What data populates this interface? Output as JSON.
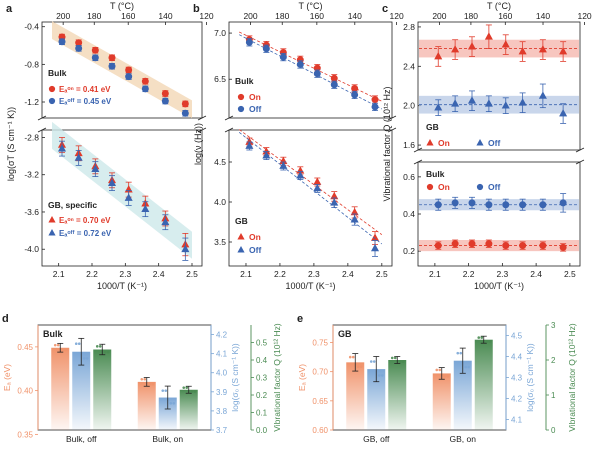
{
  "colors": {
    "on": "#e03b2b",
    "off": "#3a64b0",
    "green": "#4a8b52",
    "orange": "#f0926a",
    "blue": "#7aa6d6",
    "band_on": "#f4b3aa",
    "band_off": "#b7c8e4",
    "band_bulk": "#f3d7b5",
    "band_gb": "#cde9ea"
  },
  "chart_data": [
    {
      "panel": "a",
      "type": "scatter",
      "xlabel": "1000/T (K⁻¹)",
      "xlim": [
        2.05,
        2.53
      ],
      "xticks": [
        "2.1",
        "2.2",
        "2.3",
        "2.4",
        "2.5"
      ],
      "top_axis_label": "T (°C)",
      "top_ticks": [
        "200",
        "180",
        "160",
        "140",
        "120"
      ],
      "ylabel": "log(σT (S cm⁻¹ K))",
      "yticks_upper": [
        "-0.4",
        "-0.8",
        "-1.2"
      ],
      "yticks_lower": [
        "-2.8",
        "-3.2",
        "-3.6",
        "-4.0"
      ],
      "x": [
        2.11,
        2.16,
        2.21,
        2.26,
        2.31,
        2.36,
        2.42,
        2.48
      ],
      "series": [
        {
          "name": "On",
          "group": "Bulk",
          "marker": "circle",
          "color": "on",
          "y": [
            -0.51,
            -0.57,
            -0.65,
            -0.73,
            -0.86,
            -0.98,
            -1.11,
            -1.22
          ],
          "err": [
            0.03,
            0.03,
            0.03,
            0.03,
            0.03,
            0.03,
            0.03,
            0.03
          ]
        },
        {
          "name": "Off",
          "group": "Bulk",
          "marker": "circle",
          "color": "off",
          "y": [
            -0.56,
            -0.63,
            -0.73,
            -0.82,
            -0.93,
            -1.06,
            -1.19,
            -1.32
          ],
          "err": [
            0.03,
            0.03,
            0.03,
            0.03,
            0.03,
            0.03,
            0.03,
            0.03
          ]
        },
        {
          "name": "On",
          "group": "GB, specific",
          "marker": "triangle",
          "color": "on",
          "y": [
            -2.88,
            -2.97,
            -3.11,
            -3.26,
            -3.36,
            -3.51,
            -3.67,
            -3.95
          ],
          "err": [
            0.08,
            0.08,
            0.08,
            0.08,
            0.08,
            0.08,
            0.08,
            0.12
          ]
        },
        {
          "name": "Off",
          "group": "GB, specific",
          "marker": "triangle",
          "color": "off",
          "y": [
            -2.92,
            -3.02,
            -3.14,
            -3.29,
            -3.45,
            -3.57,
            -3.71,
            -4.0
          ],
          "err": [
            0.08,
            0.08,
            0.08,
            0.08,
            0.08,
            0.08,
            0.08,
            0.12
          ]
        }
      ],
      "annotations": {
        "bulk_label": "Bulk",
        "bulk_on": "Eₐᵒⁿ = 0.41 eV",
        "bulk_off": "Eₐᵒᶠᶠ = 0.45 eV",
        "gb_label": "GB, specific",
        "gb_on": "Eₐᵒⁿ = 0.70 eV",
        "gb_off": "Eₐᵒᶠᶠ = 0.72 eV"
      }
    },
    {
      "panel": "b",
      "type": "scatter",
      "xlabel": "1000/T (K⁻¹)",
      "xlim": [
        2.05,
        2.53
      ],
      "xticks": [
        "2.1",
        "2.2",
        "2.3",
        "2.4",
        "2.5"
      ],
      "top_axis_label": "T (°C)",
      "top_ticks": [
        "200",
        "180",
        "160",
        "140",
        "120"
      ],
      "ylabel": "log(ν (Hz))",
      "yticks_upper": [
        "7.0",
        "6.5"
      ],
      "yticks_lower": [
        "4.5",
        "4.0",
        "3.5"
      ],
      "x": [
        2.11,
        2.16,
        2.21,
        2.26,
        2.31,
        2.36,
        2.42,
        2.48
      ],
      "series": [
        {
          "name": "On",
          "group": "Bulk",
          "marker": "circle",
          "color": "on",
          "y": [
            6.93,
            6.87,
            6.79,
            6.71,
            6.62,
            6.51,
            6.4,
            6.28
          ],
          "err": [
            0.04,
            0.04,
            0.04,
            0.04,
            0.04,
            0.04,
            0.04,
            0.04
          ]
        },
        {
          "name": "Off",
          "group": "Bulk",
          "marker": "circle",
          "color": "off",
          "y": [
            6.9,
            6.83,
            6.74,
            6.66,
            6.56,
            6.44,
            6.33,
            6.2
          ],
          "err": [
            0.04,
            0.04,
            0.04,
            0.04,
            0.04,
            0.04,
            0.04,
            0.04
          ]
        },
        {
          "name": "On",
          "group": "GB",
          "marker": "triangle",
          "color": "on",
          "y": [
            4.75,
            4.63,
            4.51,
            4.39,
            4.25,
            4.07,
            3.87,
            3.55
          ],
          "err": [
            0.05,
            0.05,
            0.05,
            0.05,
            0.05,
            0.06,
            0.07,
            0.08
          ]
        },
        {
          "name": "Off",
          "group": "GB",
          "marker": "triangle",
          "color": "off",
          "y": [
            4.7,
            4.58,
            4.45,
            4.33,
            4.17,
            3.99,
            3.78,
            3.42
          ],
          "err": [
            0.05,
            0.05,
            0.05,
            0.05,
            0.05,
            0.06,
            0.07,
            0.1
          ]
        }
      ],
      "annotations": {
        "bulk_label": "Bulk",
        "gb_label": "GB",
        "on": "On",
        "off": "Off"
      }
    },
    {
      "panel": "c",
      "type": "scatter",
      "xlabel": "1000/T (K⁻¹)",
      "xlim": [
        2.05,
        2.53
      ],
      "xticks": [
        "2.1",
        "2.2",
        "2.3",
        "2.4",
        "2.5"
      ],
      "top_axis_label": "T (°C)",
      "top_ticks": [
        "200",
        "180",
        "160",
        "140",
        "120"
      ],
      "ylabel": "Vibrational factor Q (10¹² Hz)",
      "yticks_upper": [
        "2.8",
        "2.4",
        "2.0",
        "1.6"
      ],
      "yticks_lower": [
        "0.6",
        "0.4",
        "0.2"
      ],
      "x": [
        2.11,
        2.16,
        2.21,
        2.26,
        2.31,
        2.36,
        2.42,
        2.48
      ],
      "series": [
        {
          "name": "On",
          "group": "GB",
          "marker": "triangle",
          "color": "on",
          "y": [
            2.5,
            2.57,
            2.6,
            2.7,
            2.62,
            2.55,
            2.57,
            2.55
          ],
          "err": [
            0.1,
            0.1,
            0.1,
            0.12,
            0.1,
            0.1,
            0.1,
            0.1
          ]
        },
        {
          "name": "Off",
          "group": "GB",
          "marker": "triangle",
          "color": "off",
          "y": [
            1.98,
            2.02,
            2.05,
            2.02,
            2.0,
            2.03,
            2.1,
            1.92
          ],
          "err": [
            0.08,
            0.08,
            0.1,
            0.08,
            0.08,
            0.1,
            0.12,
            0.1
          ]
        },
        {
          "name": "On",
          "group": "Bulk",
          "marker": "circle",
          "color": "on",
          "y": [
            0.23,
            0.24,
            0.24,
            0.24,
            0.23,
            0.23,
            0.23,
            0.22
          ],
          "err": [
            0.02,
            0.02,
            0.02,
            0.02,
            0.02,
            0.02,
            0.02,
            0.02
          ]
        },
        {
          "name": "Off",
          "group": "Bulk",
          "marker": "circle",
          "color": "off",
          "y": [
            0.45,
            0.46,
            0.46,
            0.45,
            0.45,
            0.45,
            0.45,
            0.46
          ],
          "err": [
            0.03,
            0.03,
            0.03,
            0.03,
            0.03,
            0.03,
            0.03,
            0.05
          ]
        }
      ],
      "bands": [
        {
          "group": "GB",
          "color": "on",
          "center": 2.58
        },
        {
          "group": "GB",
          "color": "off",
          "center": 2.01
        },
        {
          "group": "Bulk",
          "color": "off",
          "center": 0.45
        },
        {
          "group": "Bulk",
          "color": "on",
          "center": 0.23
        }
      ],
      "annotations": {
        "gb_label": "GB",
        "bulk_label": "Bulk",
        "on": "On",
        "off": "Off"
      }
    },
    {
      "panel": "d",
      "type": "bar",
      "title": "Bulk",
      "categories": [
        "Bulk, off",
        "Bulk, on"
      ],
      "series": [
        {
          "name": "Eₐ (eV)",
          "axis": "left",
          "color": "orange",
          "values": [
            0.449,
            0.41
          ],
          "err": [
            0.005,
            0.005
          ]
        },
        {
          "name": "log(σ₀ (S cm⁻¹ K))",
          "axis": "right1",
          "color": "blue",
          "values": [
            4.11,
            3.87
          ],
          "err": [
            0.07,
            0.06
          ]
        },
        {
          "name": "Vibrational factor Q (10¹² Hz)",
          "axis": "right2",
          "color": "green",
          "values": [
            0.46,
            0.23
          ],
          "err": [
            0.03,
            0.02
          ]
        }
      ],
      "axes": {
        "left": {
          "label": "Eₐ (eV)",
          "ylim": [
            0.355,
            0.475
          ],
          "ticks": [
            "0.45",
            "0.40",
            "0.35"
          ]
        },
        "right1": {
          "label": "log(σ₀ (S cm⁻¹ K))",
          "ylim": [
            3.7,
            4.25
          ],
          "ticks": [
            "4.2",
            "4.1",
            "4.0",
            "3.9",
            "3.8",
            "3.7"
          ]
        },
        "right2": {
          "label": "Vibrational factor Q (10¹² Hz)",
          "ylim": [
            0.0,
            0.6
          ],
          "ticks": [
            "0.5",
            "0.4",
            "0.3",
            "0.2",
            "0.1",
            "0.0"
          ]
        }
      }
    },
    {
      "panel": "e",
      "type": "bar",
      "title": "GB",
      "categories": [
        "GB, off",
        "GB, on"
      ],
      "series": [
        {
          "name": "Eₐ (eV)",
          "axis": "left",
          "color": "orange",
          "values": [
            0.716,
            0.697
          ],
          "err": [
            0.015,
            0.01
          ]
        },
        {
          "name": "log(σ₀ (S cm⁻¹ K))",
          "axis": "right1",
          "color": "blue",
          "values": [
            4.34,
            4.38
          ],
          "err": [
            0.06,
            0.06
          ]
        },
        {
          "name": "Vibrational factor Q (10¹² Hz)",
          "axis": "right2",
          "color": "green",
          "values": [
            2.0,
            2.58
          ],
          "err": [
            0.1,
            0.1
          ]
        }
      ],
      "axes": {
        "left": {
          "label": "Eₐ (eV)",
          "ylim": [
            0.6,
            0.78
          ],
          "ticks": [
            "0.75",
            "0.70",
            "0.65",
            "0.60"
          ]
        },
        "right1": {
          "label": "log(σ₀ (S cm⁻¹ K))",
          "ylim": [
            4.05,
            4.55
          ],
          "ticks": [
            "4.5",
            "4.4",
            "4.3",
            "4.2",
            "4.1"
          ]
        },
        "right2": {
          "label": "Vibrational factor Q (10¹² Hz)",
          "ylim": [
            0,
            3.0
          ],
          "ticks": [
            "3",
            "2",
            "1",
            "0"
          ]
        }
      }
    }
  ]
}
